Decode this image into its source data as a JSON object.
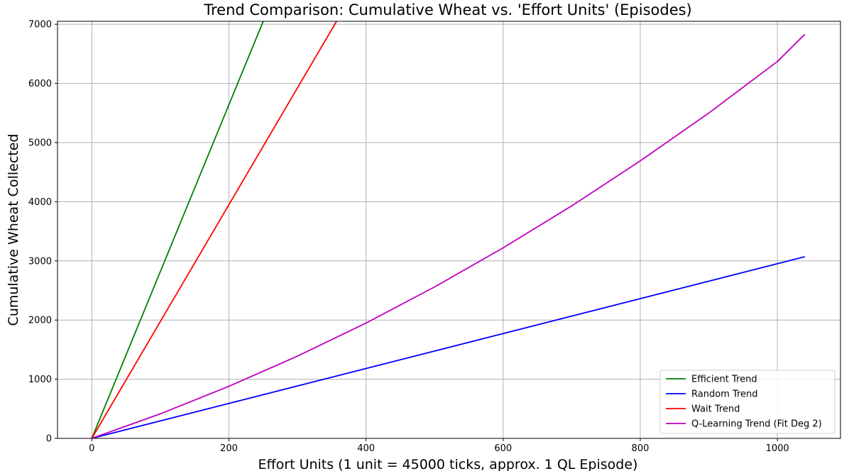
{
  "chart_data": {
    "type": "line",
    "title": "Trend Comparison: Cumulative Wheat vs. 'Effort Units' (Episodes)",
    "xlabel": "Effort Units (1 unit = 45000 ticks, approx. 1 QL Episode)",
    "ylabel": "Cumulative Wheat Collected",
    "xlim": [
      -50,
      1092
    ],
    "ylim": [
      0,
      7050
    ],
    "x_ticks": [
      0,
      200,
      400,
      600,
      800,
      1000
    ],
    "y_ticks": [
      0,
      1000,
      2000,
      3000,
      4000,
      5000,
      6000,
      7000
    ],
    "grid": true,
    "legend_position": "lower-right",
    "series": [
      {
        "name": "Efficient Trend",
        "color": "#008000",
        "x": [
          0,
          250
        ],
        "y": [
          0,
          7050
        ]
      },
      {
        "name": "Random Trend",
        "color": "#0000ff",
        "x": [
          0,
          1040
        ],
        "y": [
          0,
          3070
        ]
      },
      {
        "name": "Wait Trend",
        "color": "#ff0000",
        "x": [
          0,
          357
        ],
        "y": [
          0,
          7050
        ]
      },
      {
        "name": "Q-Learning Trend (Fit Deg 2)",
        "color": "#bf00bf",
        "x": [
          0,
          100,
          200,
          300,
          400,
          500,
          600,
          700,
          800,
          900,
          1000,
          1040
        ],
        "y": [
          0,
          415,
          880,
          1390,
          1950,
          2560,
          3220,
          3930,
          4690,
          5500,
          6370,
          6830
        ]
      }
    ]
  }
}
